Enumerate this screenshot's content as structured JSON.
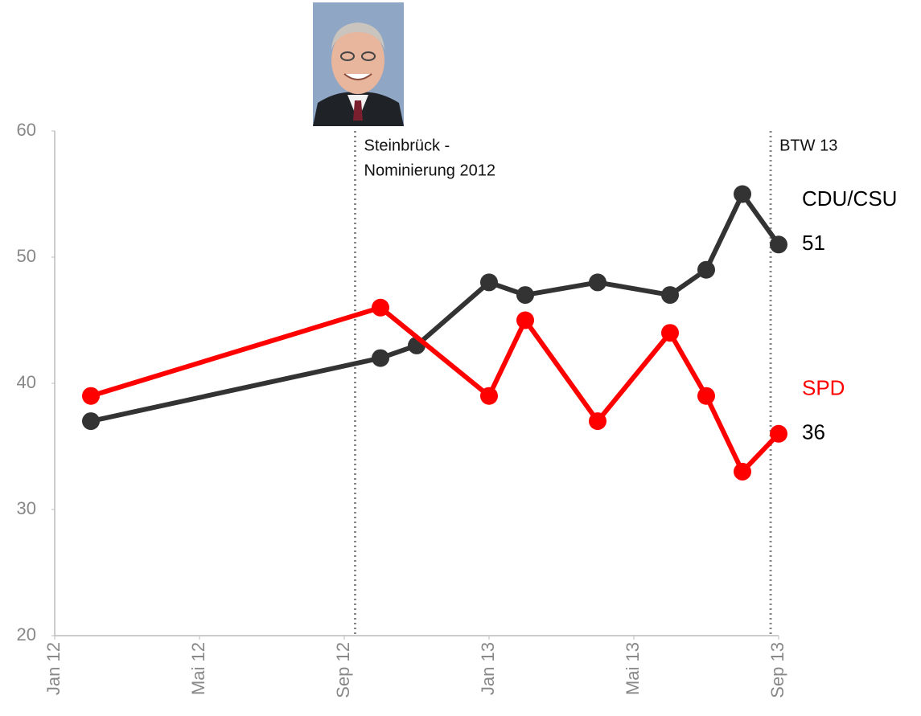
{
  "chart_data": {
    "type": "line",
    "xlim": [
      0,
      20
    ],
    "xticks": [
      {
        "value": 0,
        "label": "Jan 12"
      },
      {
        "value": 4,
        "label": "Mai 12"
      },
      {
        "value": 8,
        "label": "Sep 12"
      },
      {
        "value": 12,
        "label": "Jan 13"
      },
      {
        "value": 16,
        "label": "Mai 13"
      },
      {
        "value": 20,
        "label": "Sep 13"
      }
    ],
    "ylim": [
      20,
      60
    ],
    "yticks": [
      20,
      30,
      40,
      50,
      60
    ],
    "grid": false,
    "series": [
      {
        "name": "CDU/CSU",
        "color": "#333333",
        "x": [
          1,
          9,
          10,
          12,
          13,
          15,
          17,
          18,
          19,
          20
        ],
        "values": [
          37,
          42,
          43,
          48,
          47,
          48,
          47,
          49,
          55,
          51
        ]
      },
      {
        "name": "SPD",
        "color": "#ff0000",
        "x": [
          1,
          9,
          12,
          13,
          15,
          17,
          18,
          19,
          20
        ],
        "values": [
          39,
          46,
          39,
          45,
          37,
          44,
          39,
          33,
          36
        ]
      }
    ],
    "annotations": [
      {
        "x": 8.3,
        "text": [
          "Steinbrück -",
          "Nominierung 2012"
        ]
      },
      {
        "x": 19.78,
        "text": [
          "BTW 13"
        ]
      }
    ]
  }
}
